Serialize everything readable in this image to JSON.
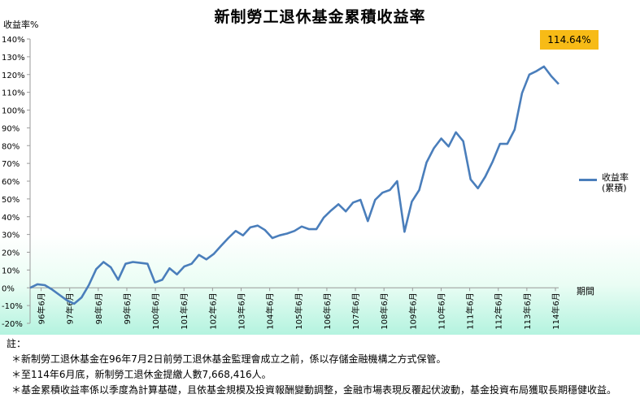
{
  "chart_data": {
    "type": "line",
    "title": "新制勞工退休基金累積收益率",
    "ylabel": "收益率%",
    "xlabel": "期間",
    "ylim": [
      -20,
      140
    ],
    "y_ticks": [
      "-20%",
      "-10%",
      "0%",
      "10%",
      "20%",
      "30%",
      "40%",
      "50%",
      "60%",
      "70%",
      "80%",
      "90%",
      "100%",
      "110%",
      "120%",
      "130%",
      "140%"
    ],
    "x_tick_labels": [
      "96年6月",
      "97年6月",
      "98年6月",
      "99年6月",
      "100年6月",
      "101年6月",
      "102年6月",
      "103年6月",
      "104年6月",
      "105年6月",
      "106年6月",
      "107年6月",
      "108年6月",
      "109年6月",
      "110年6月",
      "111年6月",
      "112年6月",
      "113年6月",
      "114年6月"
    ],
    "grid": false,
    "legend_position": "right",
    "callout": "114.64%",
    "series": [
      {
        "name": "收益率\n(累積)",
        "color": "#4a7ebb",
        "values": [
          0,
          2,
          1.5,
          -1,
          -4,
          -7,
          -9,
          -5.5,
          1.5,
          10.5,
          14.5,
          11.5,
          4.5,
          13.5,
          14.5,
          14,
          13.5,
          3,
          4.5,
          11,
          7.5,
          12,
          13.5,
          18.5,
          16,
          19,
          23.5,
          28,
          32,
          29.5,
          34,
          35,
          32.5,
          28,
          29.5,
          30.5,
          32,
          34.5,
          33,
          33,
          39.5,
          43.5,
          47,
          43,
          48,
          49.5,
          37.5,
          49.5,
          53.5,
          55,
          60,
          31.5,
          48.5,
          55,
          70.5,
          78.5,
          84,
          79.5,
          87.5,
          82.5,
          61,
          56,
          62.5,
          71,
          81,
          81,
          89,
          109.5,
          120,
          122,
          124.5,
          119,
          114.64
        ]
      }
    ]
  },
  "notes": {
    "heading": "註：",
    "items": [
      "＊新制勞工退休基金在96年7月2日前勞工退休基金監理會成立之前，係以存儲金融機構之方式保管。",
      "＊至114年6月底，新制勞工退休金提繳人數7,668,416人。",
      "＊基金累積收益率係以季度為計算基礎，且依基金規模及投資報酬變動調整，金融市場表現反覆起伏波動，基金投資布局獲取長期穩健收益。"
    ]
  }
}
